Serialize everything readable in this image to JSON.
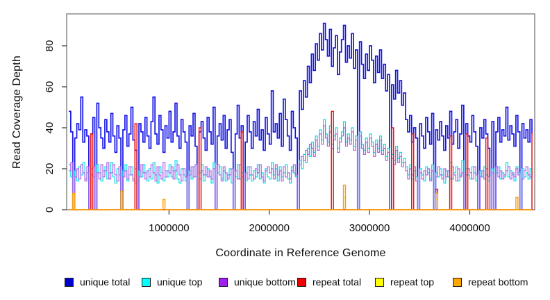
{
  "chart_data": {
    "type": "line",
    "style": "step",
    "title": "",
    "xlabel": "Coordinate in Reference Genome",
    "ylabel": "Read Coverage Depth",
    "xlim": [
      0,
      4620000
    ],
    "ylim": [
      0,
      95
    ],
    "x_ticks": [
      1000000,
      2000000,
      3000000,
      4000000
    ],
    "y_ticks": [
      0,
      20,
      40,
      60,
      80
    ],
    "x_step_bp": 20000,
    "grid": false,
    "legend_position": "bottom",
    "frame_color": "#6e6e6e",
    "tick_color": "#333333",
    "legend": [
      {
        "label": "unique total",
        "color": "#0000cc"
      },
      {
        "label": "unique top",
        "color": "#00ffff"
      },
      {
        "label": "unique bottom",
        "color": "#a020f0"
      },
      {
        "label": "repeat total",
        "color": "#ee0000"
      },
      {
        "label": "repeat top",
        "color": "#ffff00"
      },
      {
        "label": "repeat bottom",
        "color": "#ffa500"
      }
    ],
    "series": [
      {
        "name": "unique total",
        "color": "#1414e6",
        "lw": 1.7,
        "values": [
          48,
          38,
          0,
          35,
          42,
          39,
          55,
          33,
          39,
          36,
          0,
          37,
          45,
          0,
          52,
          40,
          35,
          30,
          44,
          38,
          33,
          47,
          36,
          28,
          41,
          35,
          0,
          39,
          46,
          31,
          37,
          50,
          34,
          29,
          0,
          42,
          38,
          33,
          45,
          36,
          30,
          43,
          55,
          37,
          32,
          46,
          39,
          28,
          41,
          35,
          48,
          33,
          38,
          52,
          36,
          30,
          44,
          38,
          33,
          0,
          41,
          36,
          47,
          31,
          0,
          38,
          43,
          35,
          29,
          45,
          38,
          32,
          50,
          0,
          36,
          42,
          34,
          46,
          30,
          39,
          44,
          28,
          0,
          37,
          51,
          35,
          41,
          0,
          33,
          46,
          38,
          30,
          43,
          36,
          49,
          34,
          39,
          29,
          45,
          37,
          32,
          58,
          38,
          42,
          35,
          47,
          31,
          54,
          44,
          36,
          29,
          48,
          40,
          35,
          0,
          58,
          49,
          63,
          55,
          70,
          62,
          76,
          68,
          81,
          73,
          86,
          78,
          91,
          83,
          75,
          88,
          70,
          79,
          85,
          66,
          77,
          83,
          90,
          72,
          80,
          74,
          86,
          69,
          78,
          0,
          82,
          71,
          64,
          76,
          68,
          80,
          73,
          62,
          75,
          67,
          78,
          64,
          71,
          58,
          66,
          0,
          61,
          54,
          68,
          57,
          63,
          51,
          57,
          44,
          38,
          46,
          33,
          40,
          35,
          0,
          42,
          36,
          30,
          45,
          38,
          32,
          47,
          0,
          39,
          34,
          43,
          36,
          29,
          41,
          35,
          48,
          32,
          38,
          44,
          30,
          37,
          51,
          0,
          42,
          36,
          33,
          46,
          38,
          31,
          0,
          40,
          35,
          44,
          37,
          30,
          0,
          43,
          0,
          38,
          45,
          33,
          39,
          36,
          50,
          34,
          41,
          37,
          31,
          46,
          38,
          0,
          42,
          35,
          39,
          33,
          44,
          37
        ]
      },
      {
        "name": "unique top",
        "color": "#00dde6",
        "lw": 1.2,
        "values": [
          22,
          16,
          0,
          19,
          14,
          21,
          17,
          23,
          15,
          18,
          0,
          20,
          16,
          0,
          22,
          18,
          14,
          19,
          21,
          15,
          18,
          23,
          16,
          13,
          20,
          17,
          0,
          19,
          22,
          14,
          17,
          21,
          15,
          13,
          0,
          19,
          16,
          22,
          18,
          14,
          20,
          15,
          23,
          17,
          13,
          21,
          18,
          14,
          19,
          16,
          22,
          16,
          19,
          24,
          15,
          13,
          20,
          17,
          14,
          0,
          19,
          15,
          21,
          16,
          0,
          18,
          22,
          14,
          17,
          20,
          16,
          13,
          23,
          0,
          18,
          21,
          15,
          19,
          14,
          17,
          20,
          13,
          0,
          16,
          22,
          15,
          18,
          0,
          14,
          21,
          17,
          14,
          19,
          16,
          22,
          15,
          18,
          13,
          20,
          16,
          15,
          23,
          17,
          20,
          14,
          21,
          16,
          18,
          22,
          15,
          13,
          21,
          18,
          16,
          0,
          24,
          20,
          27,
          23,
          30,
          26,
          33,
          28,
          36,
          31,
          39,
          34,
          44,
          37,
          33,
          41,
          32,
          36,
          40,
          30,
          35,
          38,
          43,
          33,
          37,
          34,
          40,
          31,
          36,
          0,
          38,
          32,
          29,
          35,
          30,
          37,
          33,
          28,
          34,
          30,
          36,
          29,
          32,
          26,
          30,
          0,
          27,
          24,
          31,
          25,
          28,
          23,
          25,
          21,
          17,
          22,
          15,
          19,
          16,
          0,
          20,
          17,
          14,
          21,
          18,
          15,
          22,
          0,
          18,
          16,
          20,
          17,
          13,
          19,
          16,
          23,
          15,
          18,
          21,
          14,
          17,
          24,
          0,
          20,
          17,
          15,
          21,
          18,
          14,
          0,
          19,
          16,
          21,
          17,
          14,
          0,
          20,
          0,
          18,
          21,
          15,
          18,
          16,
          23,
          16,
          19,
          17,
          14,
          21,
          18,
          0,
          20,
          16,
          18,
          15,
          20,
          17
        ]
      },
      {
        "name": "unique bottom",
        "color": "#ae5fe8",
        "lw": 1.2,
        "values": [
          19,
          23,
          0,
          16,
          20,
          15,
          22,
          18,
          14,
          21,
          0,
          17,
          21,
          0,
          18,
          15,
          22,
          16,
          19,
          23,
          15,
          18,
          22,
          17,
          14,
          21,
          0,
          16,
          19,
          15,
          21,
          17,
          14,
          20,
          0,
          16,
          22,
          18,
          15,
          19,
          16,
          22,
          18,
          14,
          21,
          17,
          15,
          23,
          16,
          19,
          18,
          21,
          15,
          19,
          22,
          17,
          14,
          20,
          16,
          0,
          17,
          21,
          16,
          22,
          0,
          15,
          19,
          17,
          21,
          16,
          19,
          15,
          20,
          0,
          22,
          17,
          14,
          21,
          18,
          15,
          17,
          20,
          0,
          19,
          15,
          22,
          16,
          0,
          18,
          15,
          21,
          17,
          15,
          20,
          18,
          22,
          16,
          14,
          19,
          21,
          18,
          20,
          15,
          22,
          17,
          19,
          14,
          21,
          16,
          18,
          15,
          19,
          22,
          17,
          0,
          22,
          26,
          24,
          29,
          27,
          32,
          30,
          26,
          34,
          29,
          37,
          32,
          41,
          35,
          31,
          38,
          30,
          34,
          37,
          28,
          33,
          36,
          40,
          31,
          35,
          32,
          38,
          29,
          34,
          0,
          36,
          30,
          27,
          33,
          28,
          35,
          31,
          26,
          32,
          28,
          34,
          27,
          30,
          24,
          28,
          0,
          25,
          22,
          29,
          23,
          26,
          21,
          23,
          19,
          15,
          20,
          17,
          21,
          14,
          0,
          18,
          15,
          19,
          17,
          20,
          14,
          19,
          0,
          16,
          21,
          17,
          15,
          20,
          16,
          19,
          15,
          21,
          17,
          14,
          20,
          16,
          18,
          0,
          17,
          20,
          18,
          15,
          21,
          17,
          0,
          16,
          19,
          15,
          20,
          16,
          0,
          18,
          0,
          21,
          16,
          19,
          15,
          17,
          19,
          21,
          15,
          18,
          16,
          20,
          17,
          0,
          15,
          19,
          21,
          17,
          16,
          19
        ]
      },
      {
        "name": "repeat total",
        "color": "#ee1111",
        "lw": 1.5,
        "spikes": [
          [
            11,
            37
          ],
          [
            33,
            42
          ],
          [
            65,
            40
          ],
          [
            86,
            38
          ],
          [
            131,
            48
          ],
          [
            161,
            40
          ],
          [
            171,
            37
          ],
          [
            183,
            10
          ],
          [
            190,
            36
          ],
          [
            198,
            37
          ],
          [
            208,
            35
          ],
          [
            231,
            38
          ]
        ]
      },
      {
        "name": "repeat top",
        "color": "#ffee00",
        "lw": 1.2,
        "spikes": [
          [
            47,
            4
          ],
          [
            137,
            6
          ],
          [
            183,
            5
          ]
        ]
      },
      {
        "name": "repeat bottom",
        "color": "#ff9c00",
        "lw": 1.4,
        "spikes": [
          [
            2,
            8
          ],
          [
            26,
            9
          ],
          [
            47,
            5
          ],
          [
            137,
            12
          ],
          [
            183,
            8
          ],
          [
            223,
            6
          ]
        ]
      }
    ]
  }
}
